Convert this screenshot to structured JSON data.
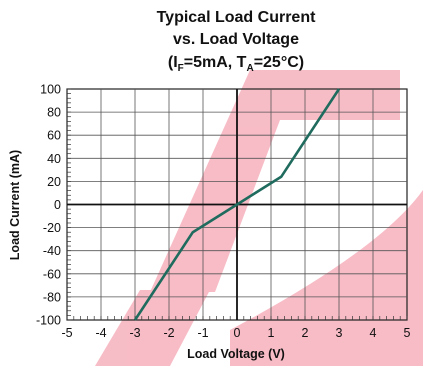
{
  "chart_data": {
    "type": "line",
    "title_lines": [
      "Typical Load Current",
      "vs. Load Voltage"
    ],
    "condition": {
      "open": "(I",
      "sub1": "F",
      "mid": "=5mA, T",
      "sub2": "A",
      "close": "=25°C)"
    },
    "xlabel": "Load Voltage (V)",
    "ylabel": "Load Current (mA)",
    "xlim": [
      -5,
      5
    ],
    "ylim": [
      -100,
      100
    ],
    "x_ticks": [
      -5,
      -4,
      -3,
      -2,
      -1,
      0,
      1,
      2,
      3,
      4,
      5
    ],
    "y_ticks": [
      100,
      80,
      60,
      40,
      20,
      0,
      -20,
      -40,
      -60,
      -80,
      -100
    ],
    "grid": true,
    "series": [
      {
        "color": "#1f6b5e",
        "points": [
          {
            "x": -3.0,
            "y": -100
          },
          {
            "x": -1.3,
            "y": -24
          },
          {
            "x": 0,
            "y": 0
          },
          {
            "x": 1.3,
            "y": 24
          },
          {
            "x": 3.0,
            "y": 100
          }
        ]
      }
    ],
    "watermark_color": "#f5a7b5"
  }
}
